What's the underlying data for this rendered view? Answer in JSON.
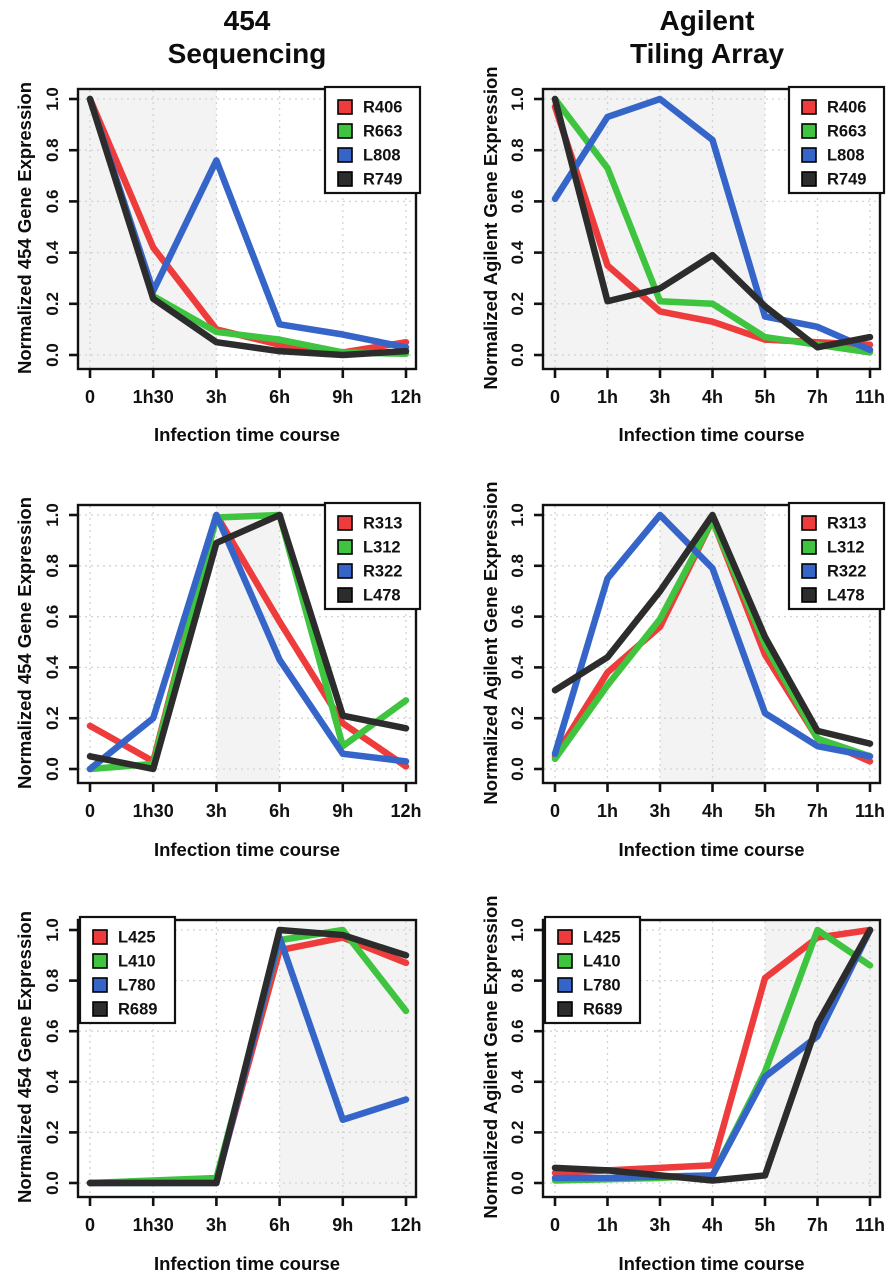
{
  "figure": {
    "column_titles": [
      [
        "454",
        "Sequencing"
      ],
      [
        "Agilent",
        "Tiling Array"
      ]
    ],
    "xlabel": "Infection time course",
    "ylabels": [
      "Normalized 454 Gene Expression",
      "Normalized Agilent Gene Expression"
    ],
    "ytick_labels": [
      "0.0",
      "0.2",
      "0.4",
      "0.6",
      "0.8",
      "1.0"
    ]
  },
  "colors": {
    "red": "#ee3b3b",
    "green": "#3ec43e",
    "blue": "#3565c8",
    "black": "#2c2c2c",
    "shade": "#f3f3f3",
    "grid": "#d3d3d3",
    "axis": "#111111",
    "legend_bg": "#ffffff"
  },
  "chart_data": [
    {
      "type": "line",
      "panel": "top-left",
      "column_title": "454 Sequencing",
      "xlabel": "Infection time course",
      "ylabel": "Normalized 454 Gene Expression",
      "categories": [
        "0",
        "1h30",
        "3h",
        "6h",
        "9h",
        "12h"
      ],
      "ylim": [
        0.0,
        1.0
      ],
      "yticks": [
        0.0,
        0.2,
        0.4,
        0.6,
        0.8,
        1.0
      ],
      "grid": true,
      "legend_position": "top-right",
      "shade_span": [
        0,
        2
      ],
      "series": [
        {
          "name": "R406",
          "color_key": "red",
          "values": [
            1.0,
            0.42,
            0.1,
            0.04,
            0.01,
            0.05
          ]
        },
        {
          "name": "R663",
          "color_key": "green",
          "values": [
            1.0,
            0.23,
            0.09,
            0.06,
            0.01,
            0.005
          ]
        },
        {
          "name": "L808",
          "color_key": "blue",
          "values": [
            1.0,
            0.25,
            0.76,
            0.12,
            0.08,
            0.03
          ]
        },
        {
          "name": "R749",
          "color_key": "black",
          "values": [
            1.0,
            0.22,
            0.05,
            0.015,
            0.0,
            0.015
          ]
        }
      ]
    },
    {
      "type": "line",
      "panel": "top-right",
      "column_title": "Agilent Tiling Array",
      "xlabel": "Infection time course",
      "ylabel": "Normalized Agilent Gene Expression",
      "categories": [
        "0",
        "1h",
        "3h",
        "4h",
        "5h",
        "7h",
        "11h"
      ],
      "ylim": [
        0.0,
        1.0
      ],
      "yticks": [
        0.0,
        0.2,
        0.4,
        0.6,
        0.8,
        1.0
      ],
      "grid": true,
      "legend_position": "top-right",
      "shade_span": [
        0,
        4
      ],
      "series": [
        {
          "name": "R406",
          "color_key": "red",
          "values": [
            0.97,
            0.35,
            0.17,
            0.13,
            0.06,
            0.05,
            0.04
          ]
        },
        {
          "name": "R663",
          "color_key": "green",
          "values": [
            1.0,
            0.73,
            0.21,
            0.2,
            0.07,
            0.04,
            0.01
          ]
        },
        {
          "name": "L808",
          "color_key": "blue",
          "values": [
            0.61,
            0.93,
            1.0,
            0.84,
            0.15,
            0.11,
            0.02
          ]
        },
        {
          "name": "R749",
          "color_key": "black",
          "values": [
            1.0,
            0.21,
            0.26,
            0.39,
            0.19,
            0.03,
            0.07
          ]
        }
      ]
    },
    {
      "type": "line",
      "panel": "middle-left",
      "column_title": "454 Sequencing",
      "xlabel": "Infection time course",
      "ylabel": "Normalized 454 Gene Expression",
      "categories": [
        "0",
        "1h30",
        "3h",
        "6h",
        "9h",
        "12h"
      ],
      "ylim": [
        0.0,
        1.0
      ],
      "yticks": [
        0.0,
        0.2,
        0.4,
        0.6,
        0.8,
        1.0
      ],
      "grid": true,
      "legend_position": "top-right",
      "shade_span": [
        2,
        3
      ],
      "series": [
        {
          "name": "R313",
          "color_key": "red",
          "values": [
            0.17,
            0.03,
            1.0,
            0.58,
            0.18,
            0.01
          ]
        },
        {
          "name": "L312",
          "color_key": "green",
          "values": [
            0.0,
            0.02,
            0.99,
            1.0,
            0.09,
            0.27
          ]
        },
        {
          "name": "R322",
          "color_key": "blue",
          "values": [
            0.0,
            0.2,
            1.0,
            0.43,
            0.06,
            0.03
          ]
        },
        {
          "name": "L478",
          "color_key": "black",
          "values": [
            0.05,
            0.0,
            0.89,
            1.0,
            0.21,
            0.16
          ]
        }
      ]
    },
    {
      "type": "line",
      "panel": "middle-right",
      "column_title": "Agilent Tiling Array",
      "xlabel": "Infection time course",
      "ylabel": "Normalized Agilent Gene Expression",
      "categories": [
        "0",
        "1h",
        "3h",
        "4h",
        "5h",
        "7h",
        "11h"
      ],
      "ylim": [
        0.0,
        1.0
      ],
      "yticks": [
        0.0,
        0.2,
        0.4,
        0.6,
        0.8,
        1.0
      ],
      "grid": true,
      "legend_position": "top-right",
      "shade_span": [
        2,
        4
      ],
      "series": [
        {
          "name": "R313",
          "color_key": "red",
          "values": [
            0.05,
            0.38,
            0.56,
            0.98,
            0.45,
            0.12,
            0.03
          ]
        },
        {
          "name": "L312",
          "color_key": "green",
          "values": [
            0.04,
            0.33,
            0.59,
            0.98,
            0.49,
            0.12,
            0.05
          ]
        },
        {
          "name": "R322",
          "color_key": "blue",
          "values": [
            0.06,
            0.75,
            1.0,
            0.79,
            0.22,
            0.09,
            0.05
          ]
        },
        {
          "name": "L478",
          "color_key": "black",
          "values": [
            0.31,
            0.44,
            0.7,
            1.0,
            0.52,
            0.15,
            0.1
          ]
        }
      ]
    },
    {
      "type": "line",
      "panel": "bottom-left",
      "column_title": "454 Sequencing",
      "xlabel": "Infection time course",
      "ylabel": "Normalized 454 Gene Expression",
      "categories": [
        "0",
        "1h30",
        "3h",
        "6h",
        "9h",
        "12h"
      ],
      "ylim": [
        0.0,
        1.0
      ],
      "yticks": [
        0.0,
        0.2,
        0.4,
        0.6,
        0.8,
        1.0
      ],
      "grid": true,
      "legend_position": "top-left",
      "shade_span": [
        3,
        5
      ],
      "series": [
        {
          "name": "L425",
          "color_key": "red",
          "values": [
            0.0,
            0.005,
            0.01,
            0.92,
            0.97,
            0.87
          ]
        },
        {
          "name": "L410",
          "color_key": "green",
          "values": [
            0.0,
            0.01,
            0.02,
            0.96,
            1.0,
            0.68
          ]
        },
        {
          "name": "L780",
          "color_key": "blue",
          "values": [
            0.0,
            0.0,
            0.0,
            0.97,
            0.25,
            0.33
          ]
        },
        {
          "name": "R689",
          "color_key": "black",
          "values": [
            0.0,
            0.0,
            0.0,
            1.0,
            0.98,
            0.9
          ]
        }
      ]
    },
    {
      "type": "line",
      "panel": "bottom-right",
      "column_title": "Agilent Tiling Array",
      "xlabel": "Infection time course",
      "ylabel": "Normalized Agilent Gene Expression",
      "categories": [
        "0",
        "1h",
        "3h",
        "4h",
        "5h",
        "7h",
        "11h"
      ],
      "ylim": [
        0.0,
        1.0
      ],
      "yticks": [
        0.0,
        0.2,
        0.4,
        0.6,
        0.8,
        1.0
      ],
      "grid": true,
      "legend_position": "top-left",
      "shade_span": [
        4,
        6
      ],
      "series": [
        {
          "name": "L425",
          "color_key": "red",
          "values": [
            0.04,
            0.05,
            0.06,
            0.07,
            0.81,
            0.97,
            1.0
          ]
        },
        {
          "name": "L410",
          "color_key": "green",
          "values": [
            0.01,
            0.015,
            0.02,
            0.03,
            0.44,
            1.0,
            0.86
          ]
        },
        {
          "name": "L780",
          "color_key": "blue",
          "values": [
            0.02,
            0.02,
            0.025,
            0.03,
            0.42,
            0.58,
            1.0
          ]
        },
        {
          "name": "R689",
          "color_key": "black",
          "values": [
            0.06,
            0.05,
            0.03,
            0.01,
            0.03,
            0.63,
            1.0
          ]
        }
      ]
    }
  ]
}
